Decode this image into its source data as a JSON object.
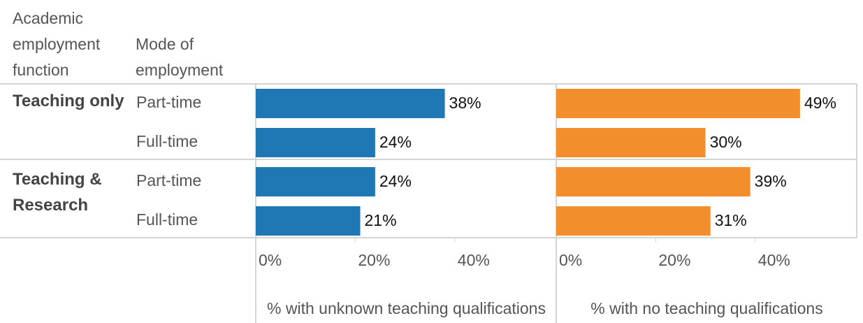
{
  "chart_data": {
    "type": "bar",
    "orientation": "horizontal",
    "row_header_titles": [
      "Academic employment function",
      "Mode of employment"
    ],
    "groups": [
      {
        "name": "Teaching only",
        "categories": [
          "Part-time",
          "Full-time"
        ]
      },
      {
        "name": "Teaching & Research",
        "categories": [
          "Part-time",
          "Full-time"
        ]
      }
    ],
    "panels": [
      {
        "xlabel": "% with unknown teaching qualifications",
        "color": "#1f77b4",
        "values": [
          38,
          24,
          24,
          21
        ],
        "value_labels": [
          "38%",
          "24%",
          "24%",
          "21%"
        ],
        "xlim": [
          0,
          60
        ],
        "xticks": [
          {
            "value": 0,
            "label": "0%"
          },
          {
            "value": 20,
            "label": "20%"
          },
          {
            "value": 40,
            "label": "40%"
          }
        ]
      },
      {
        "xlabel": "% with no teaching qualifications",
        "color": "#f28e2b",
        "values": [
          49,
          30,
          39,
          31
        ],
        "value_labels": [
          "49%",
          "30%",
          "39%",
          "31%"
        ],
        "xlim": [
          0,
          60
        ],
        "xticks": [
          {
            "value": 0,
            "label": "0%"
          },
          {
            "value": 20,
            "label": "20%"
          },
          {
            "value": 40,
            "label": "40%"
          }
        ]
      }
    ]
  }
}
